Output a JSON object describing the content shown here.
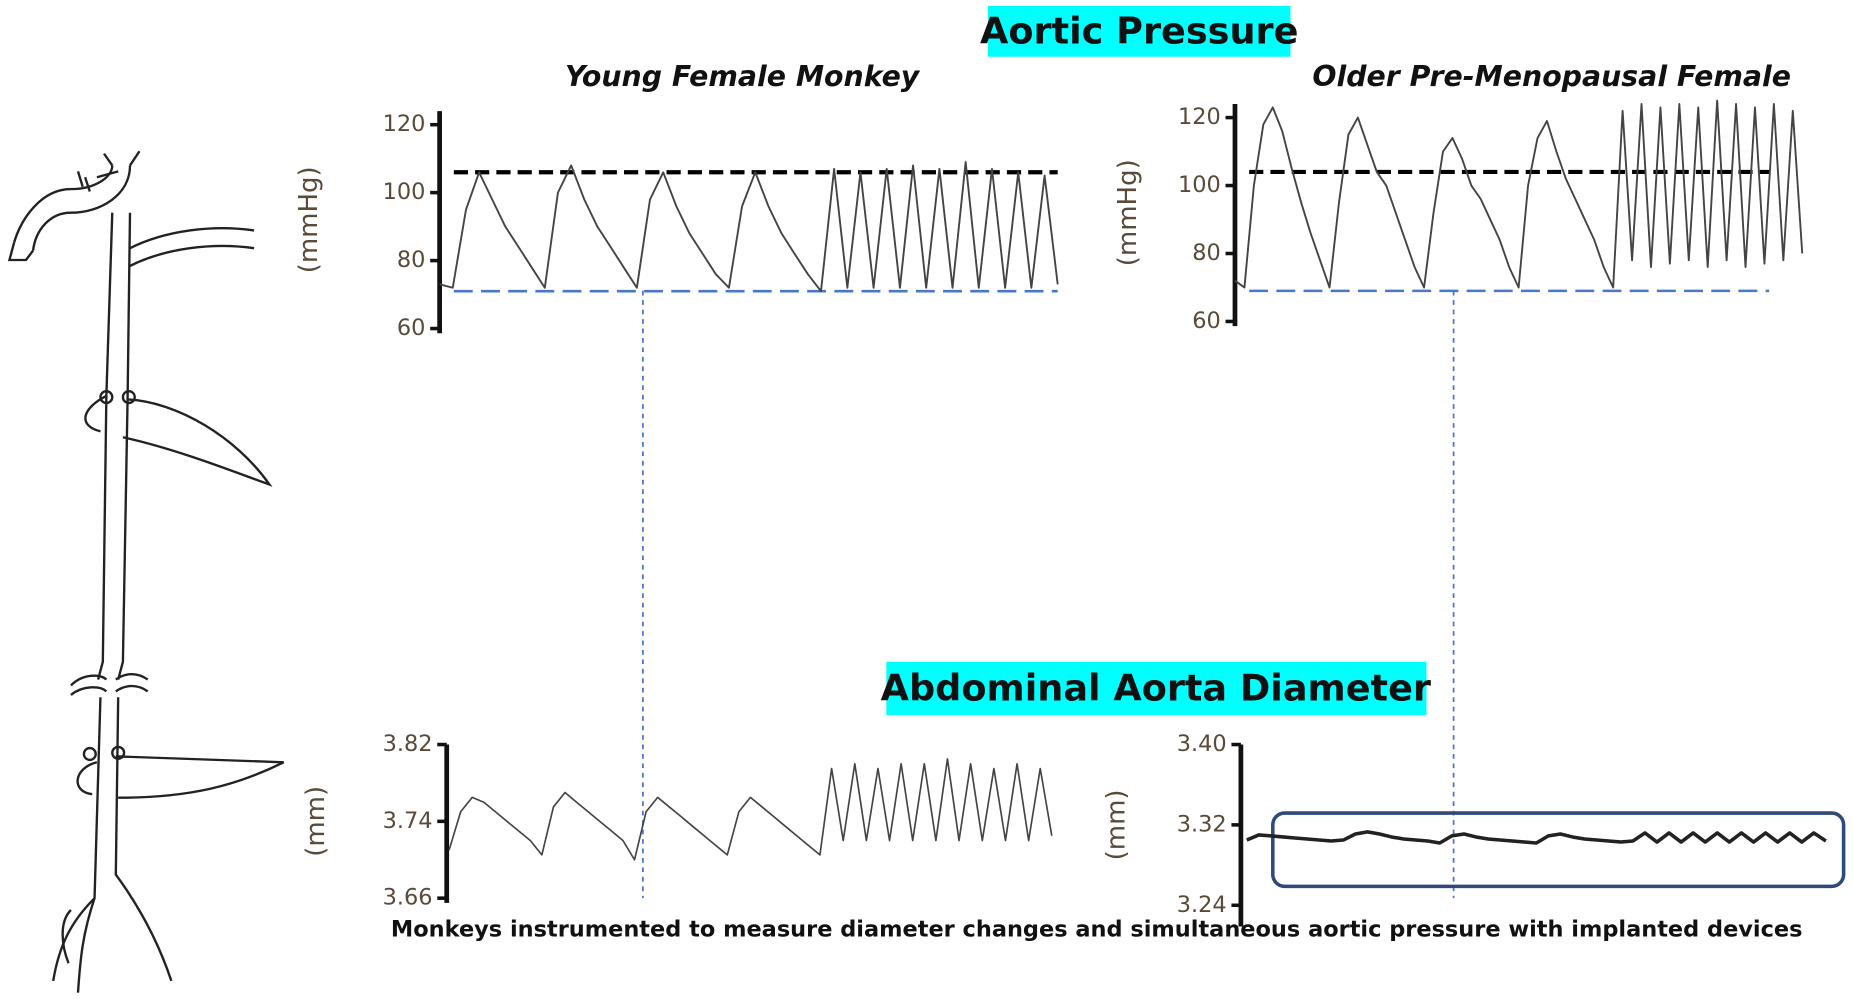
{
  "sections": [
    "Aortic Pressure",
    "Abdominal Aorta Diameter"
  ],
  "caption": "Monkeys instrumented to measure diameter changes and simultaneous aortic pressure with implanted devices",
  "chart_data": [
    {
      "type": "line",
      "title": "Young Female Monkey",
      "ylabel": "(mmHg)",
      "ylim": [
        60,
        124
      ],
      "yticks": [
        60,
        80,
        100,
        120
      ],
      "reference_lines": [
        {
          "value": 106,
          "color": "#000000",
          "style": "dashed"
        },
        {
          "value": 71,
          "color": "#4a78c8",
          "style": "dashed"
        }
      ],
      "series": [
        {
          "color": "#444444",
          "values": [
            73,
            72,
            95,
            106,
            98,
            90,
            84,
            78,
            72,
            100,
            108,
            98,
            90,
            84,
            78,
            72,
            98,
            106,
            96,
            88,
            82,
            76,
            72,
            96,
            106,
            96,
            88,
            82,
            76,
            71,
            107,
            72,
            106,
            72,
            107,
            72,
            108,
            72,
            107,
            72,
            109,
            72,
            107,
            72,
            106,
            72,
            105,
            73
          ]
        }
      ]
    },
    {
      "type": "line",
      "title": "Older Pre-Menopausal Female",
      "ylabel": "(mmHg)",
      "ylim": [
        60,
        124
      ],
      "yticks": [
        60,
        80,
        100,
        120
      ],
      "reference_lines": [
        {
          "value": 104,
          "color": "#000000",
          "style": "dashed"
        },
        {
          "value": 69,
          "color": "#4a78c8",
          "style": "dashed"
        }
      ],
      "series": [
        {
          "color": "#444444",
          "values": [
            72,
            70,
            100,
            118,
            123,
            116,
            105,
            95,
            86,
            78,
            70,
            95,
            115,
            120,
            112,
            104,
            100,
            92,
            84,
            76,
            70,
            92,
            110,
            114,
            108,
            100,
            96,
            90,
            84,
            76,
            70,
            100,
            114,
            119,
            110,
            102,
            96,
            90,
            84,
            76,
            70,
            122,
            78,
            124,
            76,
            123,
            77,
            124,
            78,
            123,
            76,
            125,
            78,
            124,
            76,
            123,
            77,
            124,
            78,
            122,
            80
          ]
        }
      ]
    },
    {
      "type": "line",
      "ylabel": "(mm)",
      "ylim": [
        3.66,
        3.82
      ],
      "yticks": [
        3.66,
        3.74,
        3.82
      ],
      "series": [
        {
          "color": "#444444",
          "values": [
            3.71,
            3.75,
            3.765,
            3.76,
            3.75,
            3.74,
            3.73,
            3.72,
            3.705,
            3.755,
            3.77,
            3.76,
            3.75,
            3.74,
            3.73,
            3.72,
            3.7,
            3.75,
            3.765,
            3.755,
            3.745,
            3.735,
            3.725,
            3.715,
            3.705,
            3.75,
            3.765,
            3.755,
            3.745,
            3.735,
            3.725,
            3.715,
            3.705,
            3.795,
            3.72,
            3.8,
            3.72,
            3.795,
            3.72,
            3.8,
            3.72,
            3.8,
            3.72,
            3.805,
            3.72,
            3.8,
            3.72,
            3.795,
            3.72,
            3.8,
            3.72,
            3.795,
            3.725
          ]
        }
      ]
    },
    {
      "type": "line",
      "ylabel": "(mm)",
      "ylim": [
        3.24,
        3.4
      ],
      "yticks": [
        3.24,
        3.32,
        {
          "value": 3.4,
          "label": "3.40"
        }
      ],
      "series": [
        {
          "color": "#222222",
          "values": [
            3.305,
            3.31,
            3.309,
            3.308,
            3.307,
            3.306,
            3.305,
            3.304,
            3.305,
            3.311,
            3.313,
            3.311,
            3.308,
            3.306,
            3.305,
            3.304,
            3.302,
            3.309,
            3.311,
            3.308,
            3.306,
            3.305,
            3.304,
            3.303,
            3.302,
            3.309,
            3.311,
            3.308,
            3.306,
            3.305,
            3.304,
            3.303,
            3.304,
            3.312,
            3.303,
            3.312,
            3.303,
            3.312,
            3.303,
            3.312,
            3.303,
            3.312,
            3.303,
            3.312,
            3.303,
            3.312,
            3.303,
            3.312,
            3.304
          ]
        }
      ]
    }
  ]
}
